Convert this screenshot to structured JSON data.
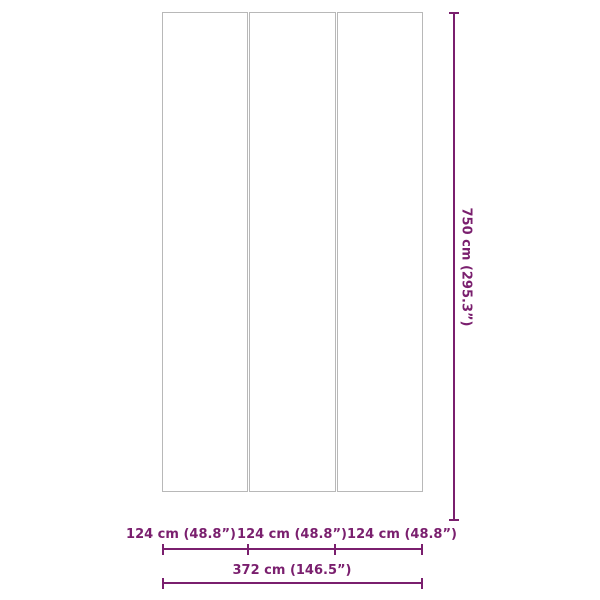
{
  "accent_color": "#7a1f6e",
  "panel_count": 3,
  "dimensions": {
    "height": "750 cm (295.3”)",
    "panel_widths": [
      "124 cm (48.8”)",
      "124 cm (48.8”)",
      "124 cm (48.8”)"
    ],
    "total_width": "372 cm (146.5”)"
  }
}
